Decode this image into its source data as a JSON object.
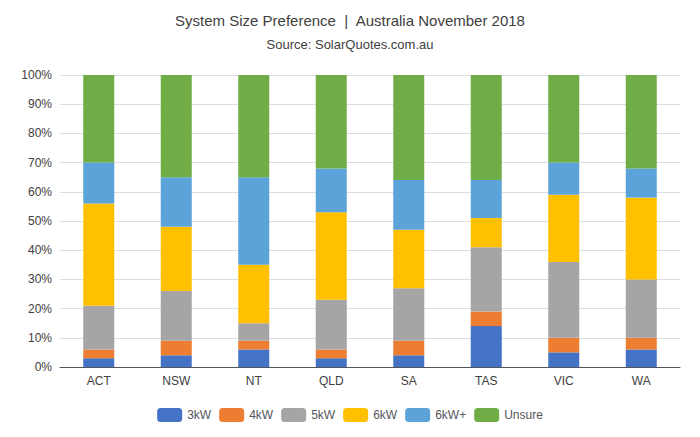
{
  "chart_data": {
    "type": "bar",
    "title": "System Size Preference  |  Australia November 2018",
    "subtitle": "Source: SolarQuotes.com.au",
    "categories": [
      "ACT",
      "NSW",
      "NT",
      "QLD",
      "SA",
      "TAS",
      "VIC",
      "WA"
    ],
    "series": [
      {
        "name": "3kW",
        "color": "#4472C4",
        "values": [
          3,
          4,
          6,
          3,
          4,
          14,
          5,
          6
        ]
      },
      {
        "name": "4kW",
        "color": "#ED7D31",
        "values": [
          3,
          5,
          3,
          3,
          5,
          5,
          5,
          4
        ]
      },
      {
        "name": "5kW",
        "color": "#A5A5A5",
        "values": [
          15,
          17,
          6,
          17,
          18,
          22,
          26,
          20
        ]
      },
      {
        "name": "6kW",
        "color": "#FFC000",
        "values": [
          35,
          22,
          20,
          30,
          20,
          10,
          23,
          28
        ]
      },
      {
        "name": "6kW+",
        "color": "#5BA3D9",
        "values": [
          14,
          17,
          30,
          15,
          17,
          13,
          11,
          10
        ]
      },
      {
        "name": "Unsure",
        "color": "#70AD47",
        "values": [
          30,
          35,
          35,
          32,
          36,
          36,
          30,
          32
        ]
      }
    ],
    "stacked": true,
    "ylim": [
      0,
      100
    ],
    "yticks": [
      {
        "value": 0,
        "label": "0%"
      },
      {
        "value": 10,
        "label": "10%"
      },
      {
        "value": 20,
        "label": "20%"
      },
      {
        "value": 30,
        "label": "30%"
      },
      {
        "value": 40,
        "label": "40%"
      },
      {
        "value": 50,
        "label": "50%"
      },
      {
        "value": 60,
        "label": "60%"
      },
      {
        "value": 70,
        "label": "70%"
      },
      {
        "value": 80,
        "label": "80%"
      },
      {
        "value": 90,
        "label": "90%"
      },
      {
        "value": 100,
        "label": "100%"
      }
    ],
    "grid": true,
    "legend": "bottom"
  }
}
